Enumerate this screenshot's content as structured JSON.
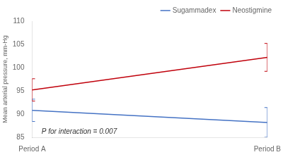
{
  "chart_data": {
    "type": "line",
    "categories": [
      "Period A",
      "Period B"
    ],
    "series": [
      {
        "name": "Sugammadex",
        "color": "#4472c4",
        "values": [
          90.8,
          88.2
        ],
        "error_low": [
          2.4,
          3.2
        ],
        "error_high": [
          2.4,
          3.2
        ]
      },
      {
        "name": "Neostigmine",
        "color": "#c0000b",
        "values": [
          95.2,
          102.2
        ],
        "error_low": [
          2.4,
          3.0
        ],
        "error_high": [
          2.4,
          3.0
        ]
      }
    ],
    "ylabel": "Mean arterial pressure, mm-Hg",
    "ylim": [
      85,
      110
    ],
    "yticks": [
      85,
      90,
      95,
      100,
      105,
      110
    ],
    "annotation": "P for interaction = 0.007",
    "legend": "upper right",
    "grid": false
  }
}
